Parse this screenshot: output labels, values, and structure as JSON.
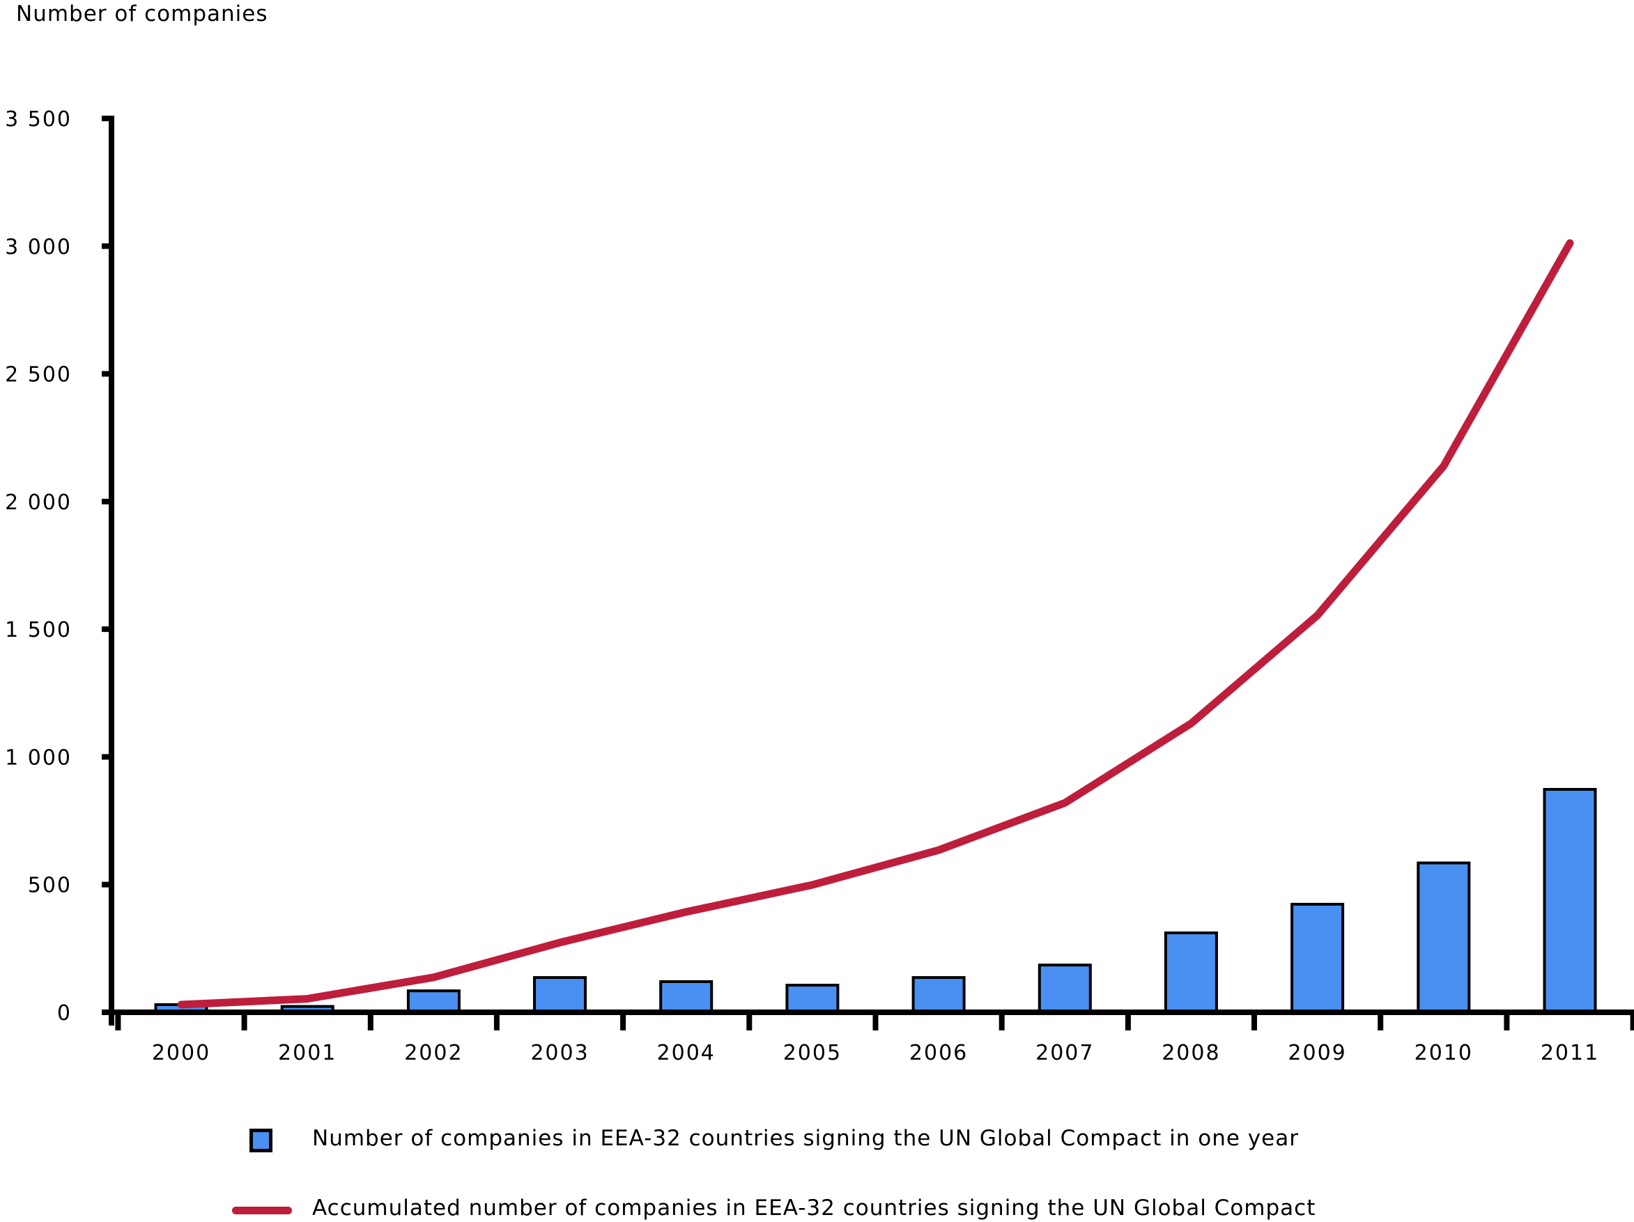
{
  "title": "Number of companies",
  "colors": {
    "background": "#FFFFFF",
    "bar_fill": "#4A90F2",
    "bar_border": "#000000",
    "line": "#BE1E3C",
    "axis": "#000000",
    "text": "#000000"
  },
  "legend": {
    "items": [
      {
        "swatch": "bar-swatch",
        "label": "Number of companies in EEA-32 countries signing the UN Global Compact in one year"
      },
      {
        "swatch": "line-swatch",
        "label": "Accumulated number of companies in EEA-32 countries signing the UN Global Compact"
      }
    ]
  },
  "chart_data": {
    "type": "bar",
    "categories": [
      "2000",
      "2001",
      "2002",
      "2003",
      "2004",
      "2005",
      "2006",
      "2007",
      "2008",
      "2009",
      "2010",
      "2011"
    ],
    "series": [
      {
        "name": "Number of companies in EEA-32 countries signing the UN Global Compact in one year",
        "type": "bar",
        "values": [
          30,
          23,
          84,
          136,
          120,
          106,
          136,
          185,
          311,
          423,
          585,
          873
        ]
      },
      {
        "name": "Accumulated number of companies in EEA-32 countries signing the UN Global Compact",
        "type": "line",
        "values": [
          30,
          53,
          137,
          273,
          393,
          499,
          635,
          820,
          1131,
          1554,
          2139,
          3012
        ]
      }
    ],
    "title": "",
    "xlabel": "",
    "ylabel": "Number of companies",
    "ylim": [
      0,
      3500
    ],
    "ytick_step": 500,
    "ytick_labels": [
      "0",
      "500",
      "1 000",
      "1 500",
      "2 000",
      "2 500",
      "3 000",
      "3 500"
    ],
    "grid": false,
    "legend_position": "bottom"
  }
}
